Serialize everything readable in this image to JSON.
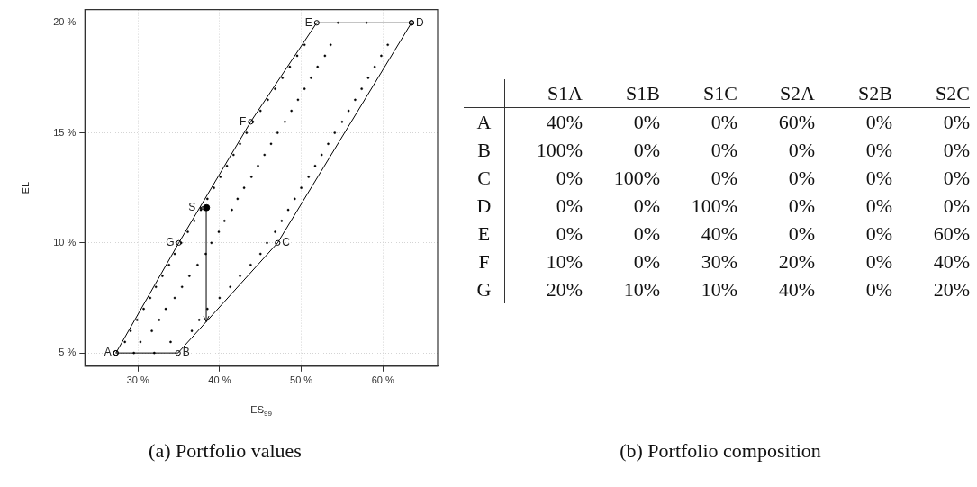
{
  "chart_data": [
    {
      "type": "scatter",
      "xlabel": "ES$_{99}$",
      "ylabel": "EL",
      "annotations": [
        "(a) Portfolio values"
      ],
      "xlim": [
        23.5,
        66.7
      ],
      "ylim": [
        4.4,
        20.6
      ],
      "xticks": [
        {
          "value": 30,
          "label": "30 %"
        },
        {
          "value": 40,
          "label": "40 %"
        },
        {
          "value": 50,
          "label": "50 %"
        },
        {
          "value": 60,
          "label": "60 %"
        }
      ],
      "yticks": [
        {
          "value": 5,
          "label": "5 %"
        },
        {
          "value": 10,
          "label": "10 %"
        },
        {
          "value": 15,
          "label": "15 %"
        },
        {
          "value": 20,
          "label": "20 %"
        }
      ],
      "grid": true,
      "legend": false,
      "series": [
        {
          "type": "line",
          "color": "#000000",
          "marker": "circle",
          "x": [
            27.3,
            34.9,
            47.1,
            63.5
          ],
          "values": [
            5,
            5,
            10,
            20
          ],
          "value_labels": [
            "A",
            "B",
            "C",
            "D"
          ]
        },
        {
          "type": "line",
          "color": "#000000",
          "marker": "circle",
          "x": [
            27.3,
            35.0,
            43.8,
            51.9,
            63.5
          ],
          "values": [
            5,
            10,
            15.5,
            20,
            20
          ],
          "value_labels": [
            null,
            "G",
            "F",
            "E",
            null
          ]
        },
        {
          "type": "scatter",
          "color": "#000000",
          "marker": "circle",
          "x": [
            29.5,
            32.0,
            28.4,
            30.3,
            34.0,
            29.1,
            31.7,
            36.6,
            29.9,
            32.6,
            37.5,
            30.7,
            33.4,
            38.5,
            31.5,
            34.5,
            40.0,
            32.2,
            35.4,
            41.3,
            33.0,
            36.3,
            42.5,
            33.8,
            37.3,
            43.8,
            34.5,
            38.3,
            45.0,
            35.3,
            39.0,
            45.8,
            36.1,
            39.9,
            46.8,
            36.9,
            40.6,
            47.6,
            37.7,
            41.5,
            48.4,
            38.5,
            42.2,
            49.2,
            39.3,
            43.0,
            50.0,
            40.1,
            43.9,
            50.9,
            40.9,
            44.7,
            51.7,
            41.7,
            45.5,
            52.5,
            42.5,
            46.3,
            53.3,
            43.3,
            47.1,
            54.1,
            44.1,
            48.0,
            55.0,
            45.0,
            48.8,
            55.8,
            45.9,
            49.6,
            56.6,
            46.8,
            50.4,
            57.4,
            47.7,
            51.2,
            58.2,
            48.6,
            52.0,
            59.0,
            49.5,
            52.9,
            59.8,
            50.4,
            53.6,
            60.6,
            54.5,
            58.0
          ],
          "values": [
            5,
            5,
            5.5,
            5.5,
            5.5,
            6,
            6,
            6,
            6.5,
            6.5,
            6.5,
            7,
            7,
            7,
            7.5,
            7.5,
            7.5,
            8,
            8,
            8,
            8.5,
            8.5,
            8.5,
            9,
            9,
            9,
            9.5,
            9.5,
            9.5,
            10,
            10,
            10,
            10.5,
            10.5,
            10.5,
            11,
            11,
            11,
            11.5,
            11.5,
            11.5,
            12,
            12,
            12,
            12.5,
            12.5,
            12.5,
            13,
            13,
            13,
            13.5,
            13.5,
            13.5,
            14,
            14,
            14,
            14.5,
            14.5,
            14.5,
            15,
            15,
            15,
            15.5,
            15.5,
            15.5,
            16,
            16,
            16,
            16.5,
            16.5,
            16.5,
            17,
            17,
            17,
            17.5,
            17.5,
            17.5,
            18,
            18,
            18,
            18.5,
            18.5,
            18.5,
            19,
            19,
            19,
            20,
            20
          ]
        },
        {
          "type": "scatter",
          "color": "#000000",
          "marker": "circle",
          "x": [
            38.4
          ],
          "values": [
            11.6
          ],
          "value_labels": [
            "S"
          ]
        }
      ]
    },
    {
      "type": "heatmap",
      "categories": [
        "S1A",
        "S1B",
        "S1C",
        "S2A",
        "S2B",
        "S2C"
      ],
      "y_categories": [
        "A",
        "B",
        "C",
        "D",
        "E",
        "F",
        "G"
      ],
      "cells": [
        [
          40,
          0,
          0,
          60,
          0,
          0
        ],
        [
          100,
          0,
          0,
          0,
          0,
          0
        ],
        [
          0,
          100,
          0,
          0,
          0,
          0
        ],
        [
          0,
          0,
          100,
          0,
          0,
          0
        ],
        [
          0,
          0,
          40,
          0,
          0,
          60
        ],
        [
          10,
          0,
          30,
          20,
          0,
          40
        ],
        [
          20,
          10,
          10,
          40,
          0,
          20
        ]
      ],
      "cell_labels": [
        [
          "40%",
          "0%",
          "0%",
          "60%",
          "0%",
          "0%"
        ],
        [
          "100%",
          "0%",
          "0%",
          "0%",
          "0%",
          "0%"
        ],
        [
          "0%",
          "100%",
          "0%",
          "0%",
          "0%",
          "0%"
        ],
        [
          "0%",
          "0%",
          "100%",
          "0%",
          "0%",
          "0%"
        ],
        [
          "0%",
          "0%",
          "40%",
          "0%",
          "0%",
          "60%"
        ],
        [
          "10%",
          "0%",
          "30%",
          "20%",
          "0%",
          "40%"
        ],
        [
          "20%",
          "10%",
          "10%",
          "40%",
          "0%",
          "20%"
        ]
      ],
      "annotations": [
        "(b) Portfolio composition"
      ]
    }
  ]
}
